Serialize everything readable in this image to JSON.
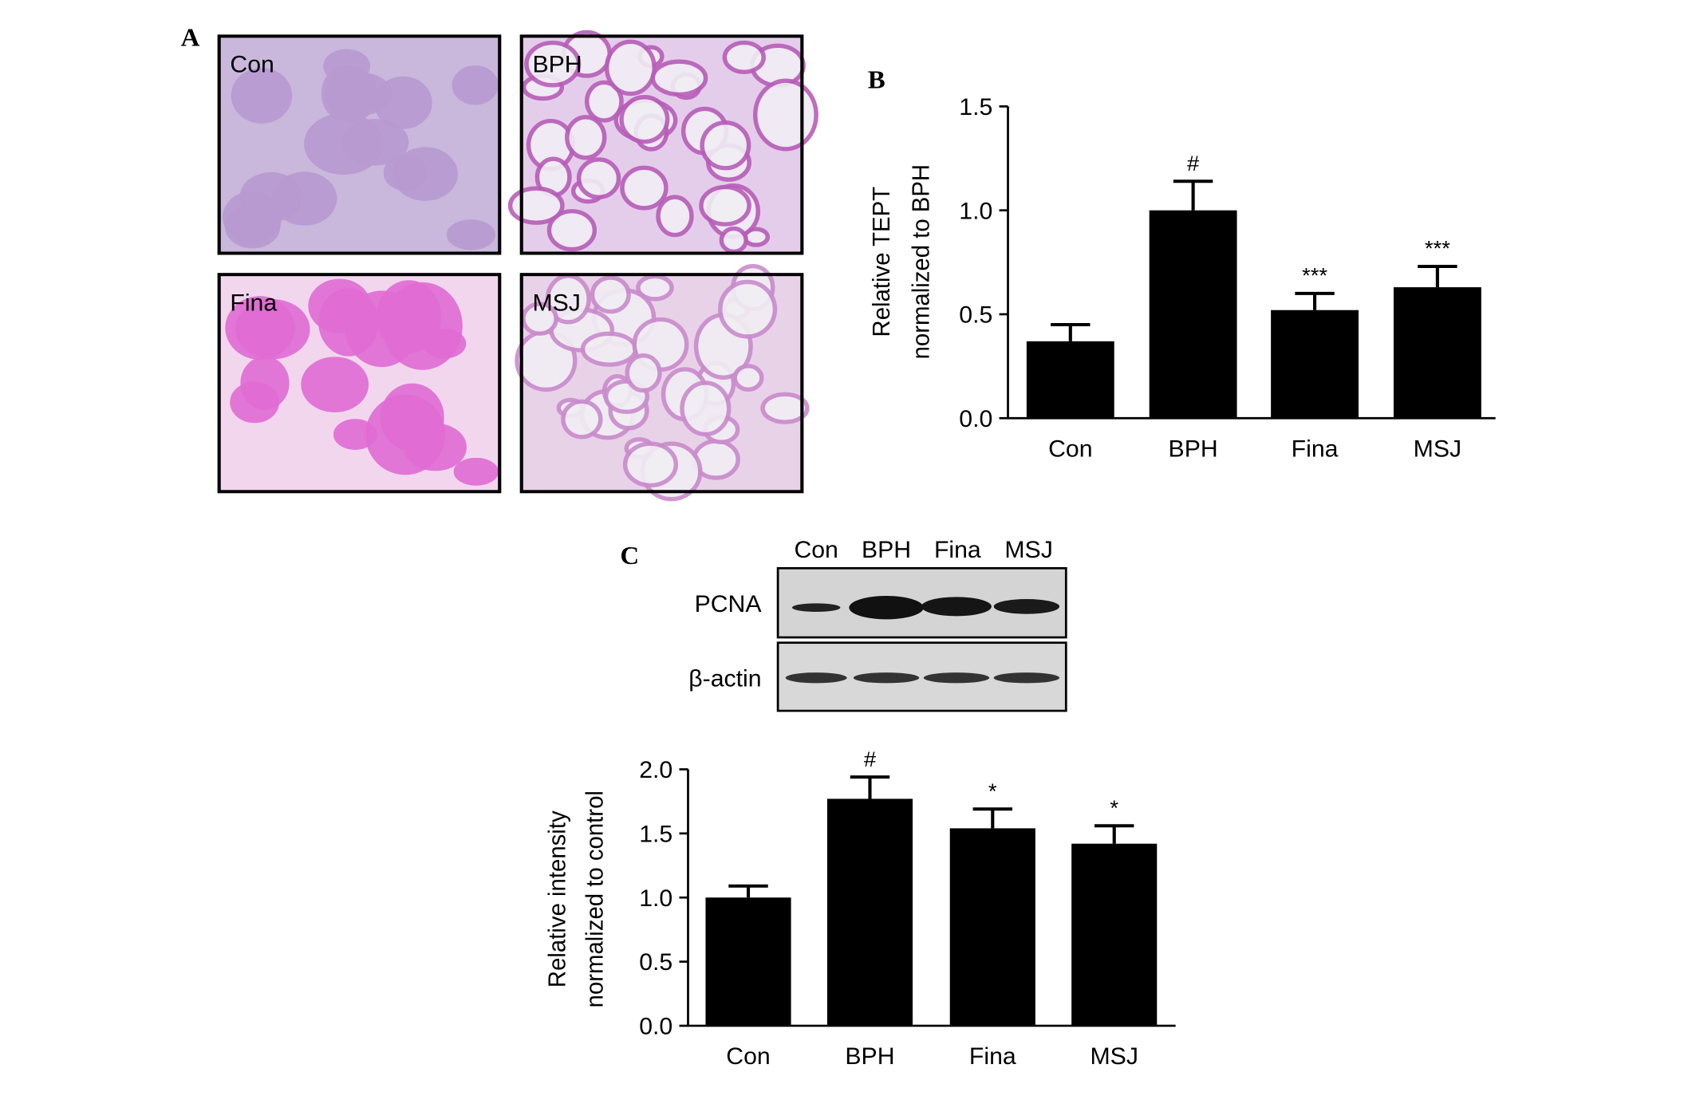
{
  "panel_labels": [
    "A",
    "B",
    "C"
  ],
  "histology": {
    "labels": [
      "Con",
      "BPH",
      "Fina",
      "MSJ"
    ]
  },
  "blot": {
    "lanes": [
      "Con",
      "BPH",
      "Fina",
      "MSJ"
    ],
    "rows": [
      "PCNA",
      "β-actin"
    ]
  },
  "chart_data": [
    {
      "type": "bar",
      "ylabel": [
        "Relative TEPT",
        "normalized to BPH"
      ],
      "categories": [
        "Con",
        "BPH",
        "Fina",
        "MSJ"
      ],
      "values": [
        0.37,
        1.0,
        0.52,
        0.63
      ],
      "errors": [
        0.08,
        0.14,
        0.08,
        0.1
      ],
      "annotations": [
        null,
        "#",
        "***",
        "***"
      ],
      "color": "#000000",
      "ylim": [
        0,
        1.5
      ],
      "yticks": [
        {
          "value": 0,
          "label": "0.0"
        },
        0.5,
        {
          "value": 1,
          "label": "1.0"
        },
        1.5
      ]
    },
    {
      "type": "bar",
      "ylabel": [
        "Relative intensity",
        "normalized to control"
      ],
      "categories": [
        "Con",
        "BPH",
        "Fina",
        "MSJ"
      ],
      "values": [
        1.0,
        1.77,
        1.54,
        1.42
      ],
      "errors": [
        0.09,
        0.17,
        0.15,
        0.14
      ],
      "annotations": [
        null,
        "#",
        "*",
        "*"
      ],
      "color": "#000000",
      "ylim": [
        0,
        2
      ],
      "yticks": [
        {
          "value": 0,
          "label": "0.0"
        },
        0.5,
        {
          "value": 1,
          "label": "1.0"
        },
        1.5,
        {
          "value": 2,
          "label": "2.0"
        }
      ]
    }
  ]
}
